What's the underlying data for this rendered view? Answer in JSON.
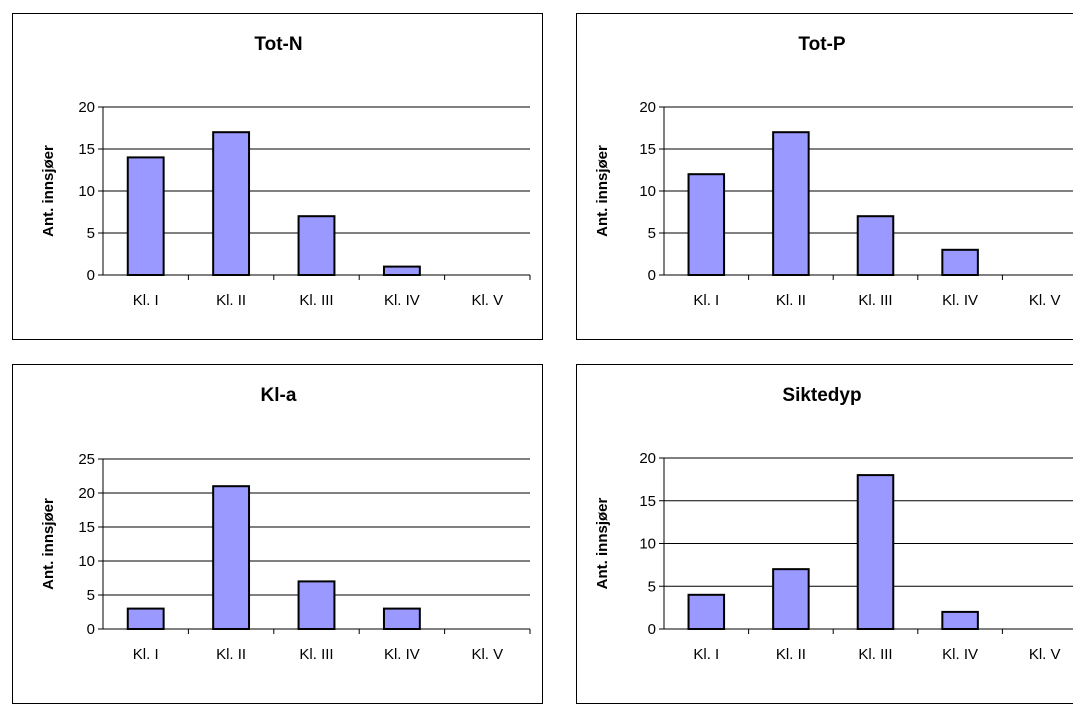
{
  "chart_data": [
    {
      "type": "bar",
      "title": "Tot-N",
      "ylabel": "Ant. innsjøer",
      "xlabel": "",
      "categories": [
        "Kl. I",
        "Kl. II",
        "Kl. III",
        "Kl. IV",
        "Kl. V"
      ],
      "values": [
        14,
        17,
        7,
        1,
        0
      ],
      "ylim": [
        0,
        20
      ],
      "yticks": [
        "0",
        "5",
        "10",
        "15",
        "20"
      ],
      "grid": true,
      "bar_color": "#9999ff"
    },
    {
      "type": "bar",
      "title": "Tot-P",
      "ylabel": "Ant. innsjøer",
      "xlabel": "",
      "categories": [
        "Kl. I",
        "Kl. II",
        "Kl. III",
        "Kl. IV",
        "Kl. V"
      ],
      "values": [
        12,
        17,
        7,
        3,
        0
      ],
      "ylim": [
        0,
        20
      ],
      "yticks": [
        "0",
        "5",
        "10",
        "15",
        "20"
      ],
      "grid": true,
      "bar_color": "#9999ff"
    },
    {
      "type": "bar",
      "title": "Kl-a",
      "ylabel": "Ant. innsjøer",
      "xlabel": "",
      "categories": [
        "Kl. I",
        "Kl. II",
        "Kl. III",
        "Kl. IV",
        "Kl. V"
      ],
      "values": [
        3,
        21,
        7,
        3,
        0
      ],
      "ylim": [
        0,
        25
      ],
      "yticks": [
        "0",
        "5",
        "10",
        "15",
        "20",
        "25"
      ],
      "grid": true,
      "bar_color": "#9999ff"
    },
    {
      "type": "bar",
      "title": "Siktedyp",
      "ylabel": "Ant. innsjøer",
      "xlabel": "",
      "categories": [
        "Kl. I",
        "Kl. II",
        "Kl. III",
        "Kl. IV",
        "Kl. V"
      ],
      "values": [
        4,
        7,
        18,
        2,
        0
      ],
      "ylim": [
        0,
        20
      ],
      "yticks": [
        "0",
        "5",
        "10",
        "15",
        "20"
      ],
      "grid": true,
      "bar_color": "#9999ff"
    }
  ]
}
